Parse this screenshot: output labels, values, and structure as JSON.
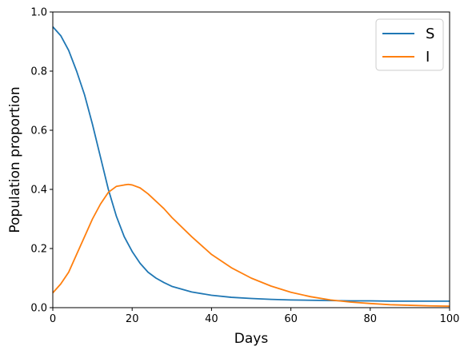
{
  "chart_data": {
    "type": "line",
    "title": "",
    "xlabel": "Days",
    "ylabel": "Population proportion",
    "xlim": [
      0,
      100
    ],
    "ylim": [
      0,
      1.0
    ],
    "xticks": [
      0,
      20,
      40,
      60,
      80,
      100
    ],
    "xtick_labels": [
      "0",
      "20",
      "40",
      "60",
      "80",
      "100"
    ],
    "yticks": [
      0,
      0.2,
      0.4,
      0.6,
      0.8,
      1.0
    ],
    "ytick_labels": [
      "0.0",
      "0.2",
      "0.4",
      "0.6",
      "0.8",
      "1.0"
    ],
    "grid": false,
    "legend_position": "top-right",
    "x": [
      0,
      2,
      4,
      6,
      8,
      10,
      12,
      14,
      16,
      18,
      19,
      20,
      22,
      24,
      26,
      28,
      30,
      35,
      40,
      45,
      50,
      55,
      60,
      65,
      70,
      75,
      80,
      85,
      90,
      95,
      100
    ],
    "series": [
      {
        "name": "S",
        "color": "#1f77b4",
        "values": [
          0.95,
          0.92,
          0.87,
          0.8,
          0.72,
          0.62,
          0.51,
          0.4,
          0.31,
          0.24,
          0.215,
          0.19,
          0.15,
          0.12,
          0.1,
          0.085,
          0.072,
          0.053,
          0.042,
          0.035,
          0.031,
          0.028,
          0.026,
          0.025,
          0.024,
          0.023,
          0.023,
          0.022,
          0.022,
          0.022,
          0.022
        ]
      },
      {
        "name": "I",
        "color": "#ff7f0e",
        "values": [
          0.05,
          0.08,
          0.12,
          0.18,
          0.24,
          0.3,
          0.35,
          0.39,
          0.41,
          0.415,
          0.417,
          0.415,
          0.405,
          0.385,
          0.36,
          0.335,
          0.305,
          0.24,
          0.18,
          0.135,
          0.1,
          0.073,
          0.052,
          0.037,
          0.026,
          0.019,
          0.014,
          0.01,
          0.008,
          0.006,
          0.005
        ]
      }
    ]
  }
}
